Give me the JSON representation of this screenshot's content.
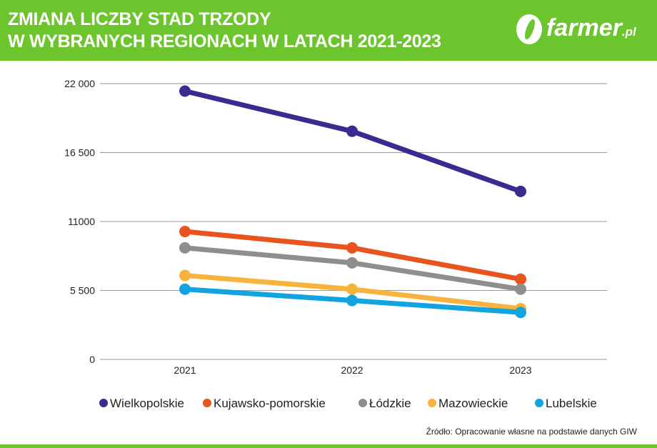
{
  "header": {
    "title_line1": "ZMIANA LICZBY STAD TRZODY",
    "title_line2": "W WYBRANYCH REGIONACH W LATACH 2021-2023",
    "logo_text": "farmer",
    "logo_suffix": ".pl"
  },
  "source": "Źródło: Opracowanie własne na podstawie danych GIW",
  "chart_data": {
    "type": "line",
    "title": "ZMIANA LICZBY STAD TRZODY W WYBRANYCH REGIONACH W LATACH 2021-2023",
    "x": [
      "2021",
      "2022",
      "2023"
    ],
    "ylim": [
      0,
      22000
    ],
    "yticks": [
      0,
      5500,
      11000,
      16500,
      22000
    ],
    "ytick_labels": [
      "0",
      "5 500",
      "11000",
      "16 500",
      "22 000"
    ],
    "grid": true,
    "legend_position": "bottom",
    "series": [
      {
        "name": "Wielkopolskie",
        "color": "#3b2a8f",
        "values": [
          21400,
          18200,
          13400
        ]
      },
      {
        "name": "Kujawsko-pomorskie",
        "color": "#e9531d",
        "values": [
          10200,
          8900,
          6400
        ]
      },
      {
        "name": "Łódzkie",
        "color": "#8e8e8e",
        "values": [
          8900,
          7700,
          5600
        ]
      },
      {
        "name": "Mazowieckie",
        "color": "#f7b33b",
        "values": [
          6700,
          5600,
          4050
        ]
      },
      {
        "name": "Lubelskie",
        "color": "#12a3e1",
        "values": [
          5600,
          4700,
          3750
        ]
      }
    ]
  }
}
